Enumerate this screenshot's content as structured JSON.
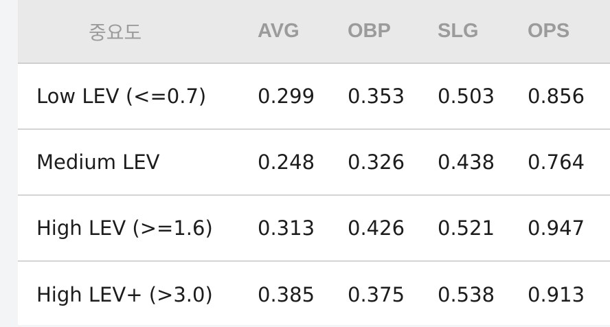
{
  "table": {
    "headers": [
      "중요도",
      "AVG",
      "OBP",
      "SLG",
      "OPS"
    ],
    "rows": [
      {
        "label": "Low LEV (<=0.7)",
        "avg": "0.299",
        "obp": "0.353",
        "slg": "0.503",
        "ops": "0.856"
      },
      {
        "label": "Medium LEV",
        "avg": "0.248",
        "obp": "0.326",
        "slg": "0.438",
        "ops": "0.764"
      },
      {
        "label": "High LEV (>=1.6)",
        "avg": "0.313",
        "obp": "0.426",
        "slg": "0.521",
        "ops": "0.947"
      },
      {
        "label": "High LEV+ (>3.0)",
        "avg": "0.385",
        "obp": "0.375",
        "slg": "0.538",
        "ops": "0.913"
      }
    ]
  }
}
